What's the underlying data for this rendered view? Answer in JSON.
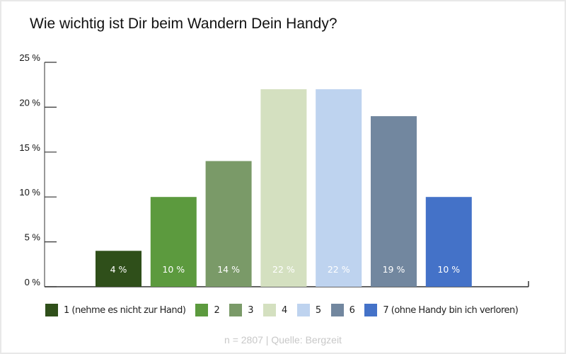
{
  "title": "Wie wichtig ist Dir beim Wandern Dein Handy?",
  "source": "n = 2807 | Quelle: Bergzeit",
  "chart_data": {
    "type": "bar",
    "title": "Wie wichtig ist Dir beim Wandern Dein Handy?",
    "categories": [
      "1 (nehme es nicht zur Hand)",
      "2",
      "3",
      "4",
      "5",
      "6",
      "7 (ohne Handy bin ich verloren)"
    ],
    "values": [
      4,
      10,
      14,
      22,
      22,
      19,
      10
    ],
    "data_labels": [
      "4 %",
      "10 %",
      "14 %",
      "22 %",
      "22 %",
      "19 %",
      "10 %"
    ],
    "colors": [
      "#2f4f1a",
      "#5c9a3e",
      "#7a9a68",
      "#d4e0c0",
      "#bed3ef",
      "#72879f",
      "#4472c8"
    ],
    "ylim": [
      0,
      25
    ],
    "yticks": [
      0,
      5,
      10,
      15,
      20,
      25
    ],
    "ytick_labels": [
      "0 %",
      "5 %",
      "10 %",
      "15 %",
      "20 %",
      "25 %"
    ],
    "xlabel": "",
    "ylabel": "",
    "grid": false,
    "legend": "bottom"
  }
}
